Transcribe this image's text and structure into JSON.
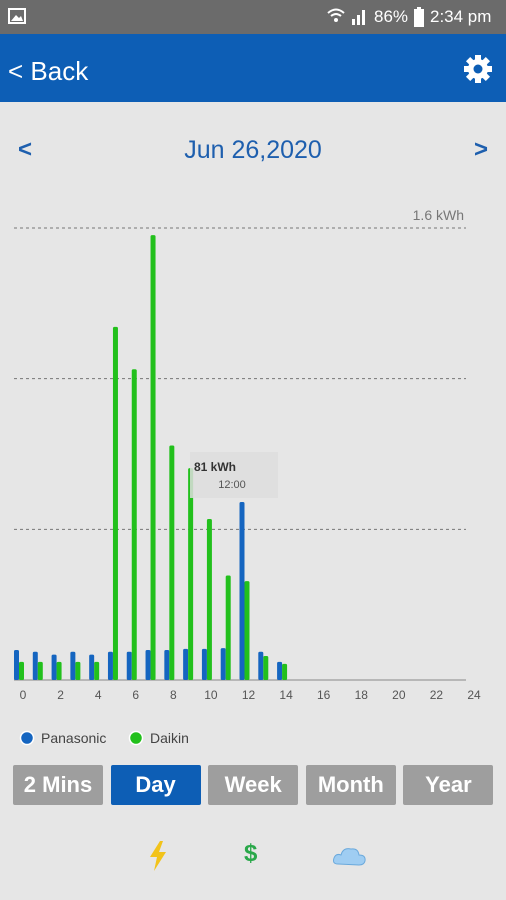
{
  "status_bar": {
    "battery": "86%",
    "time": "2:34 pm"
  },
  "header": {
    "back": "< Back"
  },
  "date_nav": {
    "prev": "<",
    "date": "Jun 26,2020",
    "next": ">"
  },
  "chart_data": {
    "type": "bar",
    "x": [
      0,
      1,
      2,
      3,
      4,
      5,
      6,
      7,
      8,
      9,
      10,
      11,
      12,
      13,
      14
    ],
    "series": [
      {
        "name": "Panasonic",
        "color": "#1565c0",
        "values": [
          0.106,
          0.1,
          0.09,
          0.1,
          0.09,
          0.1,
          0.1,
          0.106,
          0.106,
          0.11,
          0.11,
          0.113,
          0.63,
          0.1,
          0.064
        ]
      },
      {
        "name": "Daikin",
        "color": "#22c01c",
        "values": [
          0.064,
          0.064,
          0.064,
          0.064,
          0.064,
          1.25,
          1.1,
          1.575,
          0.83,
          0.75,
          0.57,
          0.37,
          0.35,
          0.085,
          0.057
        ]
      }
    ],
    "xlim": [
      0,
      24
    ],
    "xticks": [
      0,
      2,
      4,
      6,
      8,
      10,
      12,
      14,
      16,
      18,
      20,
      22,
      24
    ],
    "ylim": [
      0,
      1.6
    ],
    "yticks": [
      {
        "value": 1.6,
        "label": "1.6 kWh"
      }
    ],
    "grid_lines": [
      0.533,
      1.067
    ],
    "tooltip": {
      "value": "81 kWh",
      "time": "12:00"
    }
  },
  "period_buttons": {
    "labels": [
      "2 Mins",
      "Day",
      "Week",
      "Month",
      "Year"
    ],
    "selected": 1
  },
  "bottom_icons": {
    "cost": "$"
  }
}
